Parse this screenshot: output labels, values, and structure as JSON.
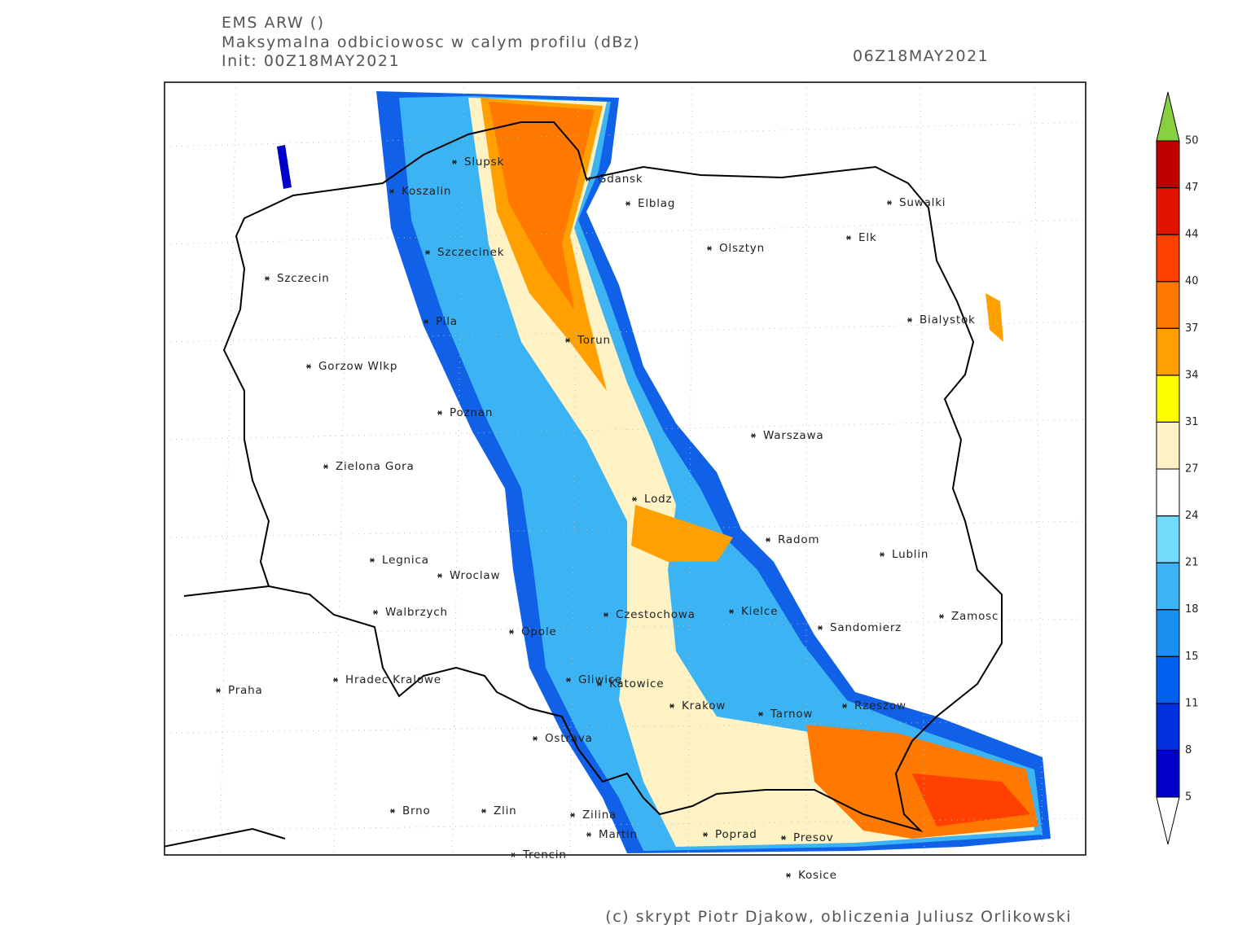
{
  "header": {
    "model": "EMS ARW ()",
    "title": "Maksymalna odbiciowosc w calym profilu (dBz)",
    "init": "Init: 00Z18MAY2021",
    "valid": "06Z18MAY2021"
  },
  "cities": [
    "Slupsk",
    "Koszalin",
    "Gdansk",
    "Elblag",
    "Suwalki",
    "Elk",
    "Olsztyn",
    "Szczecinek",
    "Szczecin",
    "Bialystok",
    "Pila",
    "Torun",
    "Gorzow Wlkp",
    "Poznan",
    "Warszawa",
    "Zielona Gora",
    "Lodz",
    "Radom",
    "Lublin",
    "Legnica",
    "Wroclaw",
    "Walbrzych",
    "Czestochowa",
    "Kielce",
    "Zamosc",
    "Sandomierz",
    "Opole",
    "Praha",
    "Hradec Kralowe",
    "Gliwice",
    "Katowice",
    "Rzeszow",
    "Krakow",
    "Tarnow",
    "Ostrava",
    "Brno",
    "Zlin",
    "Zilina",
    "Martin",
    "Poprad",
    "Presov",
    "Trencin",
    "Kosice"
  ],
  "colorbar": {
    "levels": [
      5,
      8,
      11,
      15,
      18,
      21,
      24,
      27,
      31,
      34,
      37,
      40,
      44,
      47,
      50
    ],
    "colors": [
      "#0000c8",
      "#0030e0",
      "#0060f0",
      "#1890f0",
      "#3cb4f4",
      "#70dcfa",
      "#ffffff",
      "#fff2c4",
      "#ffff00",
      "#ffa000",
      "#ff7800",
      "#ff4000",
      "#e01400",
      "#c00000"
    ],
    "over_color": "#88d040",
    "under_color": "#ffffff"
  },
  "credit": "(c) skrypt Piotr Djakow, obliczenia Juliusz Orlikowski"
}
